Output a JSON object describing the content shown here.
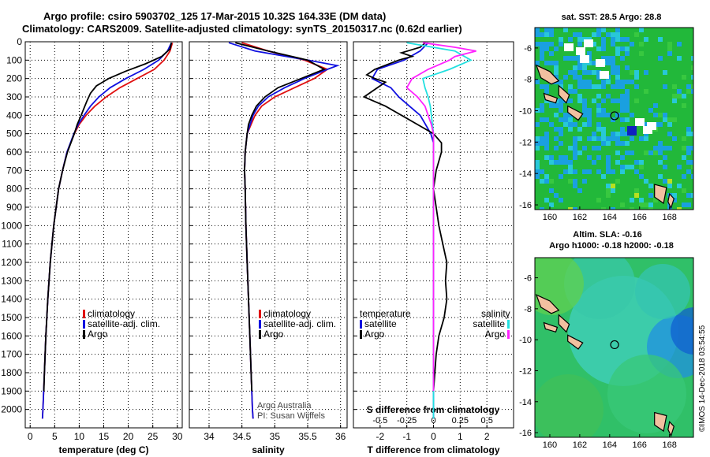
{
  "header": {
    "line1": "Argo profile: csiro 5903702_125 17-Mar-2015 10.32S 164.33E (DM data)",
    "line2": "Climatology: CARS2009. Satellite-adjusted climatology: synTS_20150317.nc (0.62d earlier)"
  },
  "credits": {
    "line1": "Argo Australia",
    "line2": "PI: Susan Wijffels",
    "stamp": "©IMOS 14-Dec-2018 03:54:55"
  },
  "colors": {
    "climatology": "#e01010",
    "satellite": "#1010e0",
    "argo": "#000000",
    "sat_salinity": "#22e0e0",
    "argo_salinity": "#ff22ff",
    "land": "#f2c0a0"
  },
  "chart_data": [
    {
      "type": "line",
      "panel": "temperature",
      "xlabel": "temperature (deg C)",
      "ylabel": "",
      "xlim": [
        -1,
        31
      ],
      "ylim": [
        2100,
        0
      ],
      "xticks": [
        0,
        5,
        10,
        15,
        20,
        25,
        30
      ],
      "yticks": [
        0,
        100,
        200,
        300,
        400,
        500,
        600,
        700,
        800,
        900,
        1000,
        1100,
        1200,
        1300,
        1400,
        1500,
        1600,
        1700,
        1800,
        1900,
        2000
      ],
      "legend": [
        "climatology",
        "satellite-adj. clim.",
        "Argo"
      ],
      "legend_position": "middle-right",
      "series": [
        {
          "name": "climatology",
          "color": "#e01010",
          "depth": [
            5,
            50,
            100,
            150,
            200,
            250,
            300,
            350,
            400,
            450,
            500,
            600,
            700,
            800,
            1000,
            1200,
            1400,
            1600,
            1800,
            2000,
            2050
          ],
          "values": [
            29.0,
            28.5,
            27.3,
            25.3,
            21.8,
            18.3,
            15.5,
            13.2,
            11.4,
            10.0,
            9.0,
            7.5,
            6.6,
            5.8,
            4.8,
            4.1,
            3.6,
            3.2,
            2.9,
            2.6,
            2.5
          ]
        },
        {
          "name": "satellite-adj. clim.",
          "color": "#1010e0",
          "depth": [
            5,
            50,
            100,
            150,
            200,
            250,
            300,
            350,
            400,
            450,
            500,
            600,
            700,
            800,
            1000,
            1200,
            1400,
            1600,
            1800,
            2000,
            2050
          ],
          "values": [
            28.8,
            28.0,
            26.2,
            23.2,
            19.5,
            16.3,
            14.0,
            12.3,
            11.0,
            9.8,
            8.9,
            7.5,
            6.6,
            5.8,
            4.8,
            4.1,
            3.6,
            3.2,
            2.9,
            2.6,
            2.5
          ]
        },
        {
          "name": "Argo",
          "color": "#000000",
          "depth": [
            5,
            40,
            80,
            120,
            160,
            200,
            240,
            280,
            320,
            360,
            400,
            450,
            500,
            600,
            700,
            800,
            1000,
            1200,
            1400,
            1600,
            1800,
            1900
          ],
          "values": [
            28.8,
            28.5,
            26.8,
            23.5,
            19.5,
            16.0,
            13.5,
            12.3,
            11.6,
            11.0,
            10.4,
            9.6,
            9.0,
            7.6,
            6.6,
            5.8,
            4.8,
            4.1,
            3.6,
            3.2,
            2.9,
            2.8
          ]
        }
      ]
    },
    {
      "type": "line",
      "panel": "salinity",
      "xlabel": "salinity",
      "ylabel": "",
      "xlim": [
        33.7,
        36.1
      ],
      "ylim": [
        2100,
        0
      ],
      "xticks": [
        34,
        34.5,
        35,
        35.5,
        36
      ],
      "legend": [
        "climatology",
        "satellite-adj. clim.",
        "Argo"
      ],
      "legend_position": "middle-right",
      "series": [
        {
          "name": "climatology",
          "color": "#e01010",
          "depth": [
            5,
            50,
            100,
            150,
            200,
            250,
            300,
            350,
            400,
            500,
            600,
            700,
            800,
            1000,
            1200,
            1400,
            1600,
            1800,
            2000,
            2050
          ],
          "values": [
            34.5,
            34.9,
            35.45,
            35.8,
            35.6,
            35.3,
            35.0,
            34.8,
            34.7,
            34.58,
            34.55,
            34.54,
            34.55,
            34.56,
            34.58,
            34.6,
            34.62,
            34.64,
            34.66,
            34.67
          ]
        },
        {
          "name": "satellite-adj. clim.",
          "color": "#1010e0",
          "depth": [
            5,
            50,
            100,
            130,
            150,
            200,
            250,
            300,
            350,
            400,
            500,
            600,
            700,
            800,
            1000,
            1200,
            1400,
            1600,
            1800,
            2000,
            2050
          ],
          "values": [
            34.3,
            34.7,
            35.5,
            35.95,
            35.8,
            35.45,
            35.15,
            34.9,
            34.75,
            34.67,
            34.58,
            34.55,
            34.54,
            34.55,
            34.56,
            34.58,
            34.6,
            34.62,
            34.64,
            34.66,
            34.67
          ]
        },
        {
          "name": "Argo",
          "color": "#000000",
          "depth": [
            5,
            50,
            100,
            150,
            200,
            250,
            300,
            350,
            400,
            450,
            500,
            600,
            700,
            800,
            1000,
            1200,
            1400,
            1600,
            1800,
            1900
          ],
          "values": [
            34.4,
            34.9,
            35.5,
            35.75,
            35.4,
            35.05,
            34.85,
            34.72,
            34.65,
            34.6,
            34.58,
            34.55,
            34.54,
            34.55,
            34.56,
            34.58,
            34.6,
            34.62,
            34.64,
            34.65
          ]
        }
      ]
    },
    {
      "type": "line",
      "panel": "differences",
      "xlabel": "T difference from climatology",
      "xlabel2": "S difference from climatology",
      "xlim": [
        -3.0,
        3.0
      ],
      "xticks": [
        -2,
        -1,
        0,
        1,
        2
      ],
      "xticks_s": [
        -0.5,
        -0.25,
        0,
        0.25,
        0.5
      ],
      "ylim": [
        2100,
        0
      ],
      "legend_t_title": "temperature",
      "legend_s_title": "salinity",
      "legend_t": [
        "satellite",
        "Argo"
      ],
      "legend_s": [
        "satellite",
        "Argo"
      ],
      "series": [
        {
          "name": "satellite",
          "group": "temperature",
          "color": "#1010e0",
          "depth": [
            5,
            50,
            100,
            150,
            200,
            250,
            300,
            350,
            400,
            450,
            500,
            550,
            600,
            700,
            800,
            1000,
            1200,
            1400,
            1600,
            1800,
            2000,
            2050
          ],
          "values": [
            -0.2,
            -0.5,
            -1.1,
            -2.1,
            -2.3,
            -1.6,
            -1.3,
            -0.9,
            -0.5,
            -0.3,
            -0.1,
            0.0,
            0.0,
            0.0,
            0.0,
            0.0,
            0.0,
            0.0,
            0.0,
            0.0,
            0.0,
            0.0
          ]
        },
        {
          "name": "Argo",
          "group": "temperature",
          "color": "#000000",
          "depth": [
            5,
            30,
            60,
            80,
            100,
            150,
            180,
            200,
            220,
            300,
            350,
            400,
            450,
            500,
            550,
            600,
            700,
            800,
            900,
            1000,
            1100,
            1200,
            1300,
            1400,
            1500,
            1600,
            1700,
            1800,
            1900
          ],
          "values": [
            -0.3,
            -0.5,
            -1.2,
            -0.8,
            -1.3,
            -2.2,
            -2.5,
            -2.2,
            -1.8,
            -2.6,
            -1.8,
            -1.2,
            -0.6,
            0.0,
            0.3,
            0.3,
            0.1,
            0.0,
            0.1,
            0.2,
            0.35,
            0.5,
            0.45,
            0.5,
            0.4,
            0.2,
            0.1,
            0.05,
            0.0
          ]
        },
        {
          "name": "satellite",
          "group": "salinity",
          "color": "#22e0e0",
          "depth": [
            5,
            50,
            100,
            150,
            200,
            250,
            300,
            350,
            400,
            500,
            600,
            700,
            800,
            1000,
            1200,
            1400,
            1600,
            1800,
            2000,
            2050
          ],
          "values": [
            -0.25,
            0.2,
            0.35,
            0.15,
            -0.1,
            -0.08,
            -0.05,
            -0.03,
            -0.02,
            0.0,
            0.0,
            0.0,
            0.0,
            0.0,
            0.0,
            0.0,
            0.0,
            0.0,
            0.0,
            0.0
          ]
        },
        {
          "name": "Argo",
          "group": "salinity",
          "color": "#ff22ff",
          "depth": [
            5,
            30,
            50,
            80,
            100,
            150,
            200,
            250,
            300,
            350,
            400,
            450,
            500,
            600,
            800,
            1000,
            1200,
            1400,
            1600,
            1800,
            1900
          ],
          "values": [
            -0.1,
            0.2,
            0.4,
            0.2,
            0.15,
            -0.05,
            -0.2,
            -0.25,
            -0.15,
            -0.08,
            -0.05,
            -0.02,
            0.0,
            0.0,
            0.0,
            0.0,
            0.0,
            0.0,
            0.0,
            0.0,
            0.0
          ]
        }
      ]
    },
    {
      "type": "heatmap",
      "panel": "sst_map",
      "title": "sat. SST: 28.5 Argo: 28.8",
      "xticks": [
        160,
        162,
        164,
        166,
        168
      ],
      "yticks": [
        -6,
        -8,
        -10,
        -12,
        -14,
        -16
      ],
      "xlim": [
        159.0,
        169.6
      ],
      "ylim": [
        -16.3,
        -4.7
      ],
      "marker": {
        "lon": 164.33,
        "lat": -10.32
      }
    },
    {
      "type": "heatmap",
      "panel": "sla_map",
      "title": "Altim. SLA: -0.16",
      "subtitle": "Argo h1000: -0.18 h2000: -0.18",
      "xticks": [
        160,
        162,
        164,
        166,
        168
      ],
      "yticks": [
        -6,
        -8,
        -10,
        -12,
        -14,
        -16
      ],
      "xlim": [
        159.0,
        169.6
      ],
      "ylim": [
        -16.3,
        -4.7
      ],
      "marker": {
        "lon": 164.33,
        "lat": -10.32
      }
    }
  ]
}
